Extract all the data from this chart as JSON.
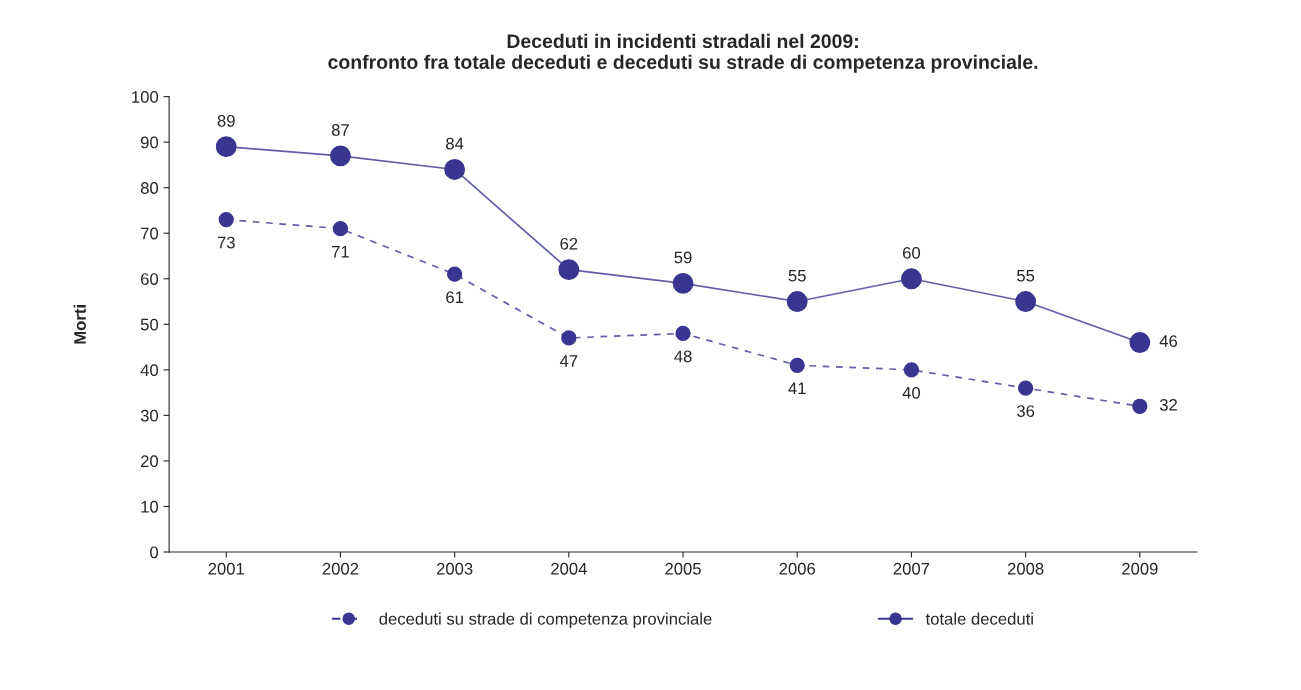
{
  "chart_data": {
    "type": "line",
    "title": "Deceduti in incidenti stradali nel 2009:\nconfronto fra totale deceduti e deceduti su strade di competenza provinciale.",
    "ylabel": "Morti",
    "categories": [
      "2001",
      "2002",
      "2003",
      "2004",
      "2005",
      "2006",
      "2007",
      "2008",
      "2009"
    ],
    "series": [
      {
        "name": "deceduti su strade di competenza provinciale",
        "color": "#3a3590",
        "line_style": "dashed",
        "values": [
          73,
          71,
          61,
          47,
          48,
          41,
          40,
          36,
          32
        ]
      },
      {
        "name": "totale deceduti",
        "color": "#3a3590",
        "line_style": "solid",
        "values": [
          89,
          87,
          84,
          62,
          59,
          55,
          60,
          55,
          46
        ]
      }
    ],
    "ylim": [
      0,
      100
    ],
    "yticks": [
      0,
      10,
      20,
      30,
      40,
      50,
      60,
      70,
      80,
      90,
      100
    ],
    "marker": "circle",
    "data_labels": true,
    "grid": false,
    "legend": "bottom"
  }
}
